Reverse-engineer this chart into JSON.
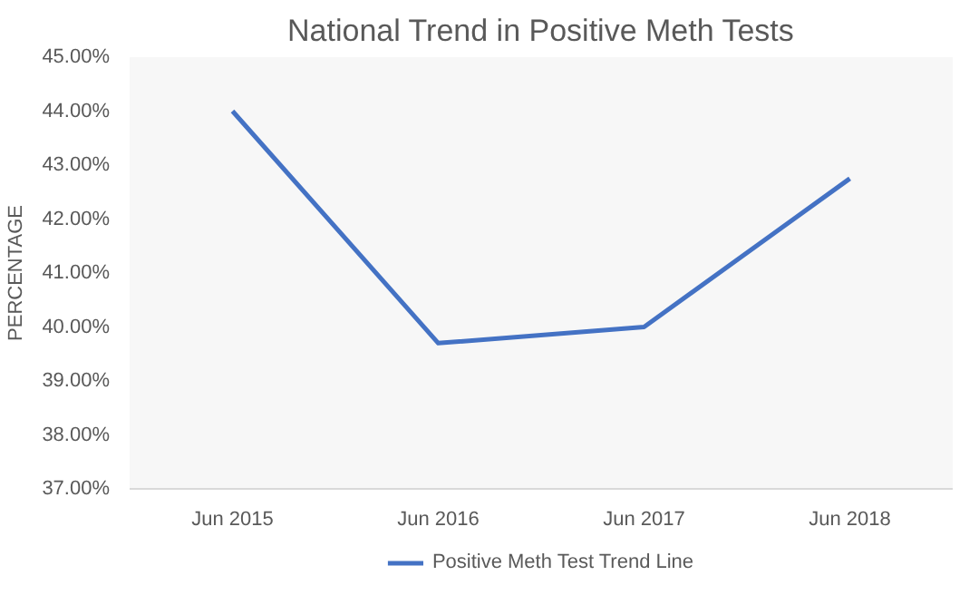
{
  "chart_data": {
    "type": "line",
    "title": "National Trend in Positive Meth Tests",
    "ylabel": "PERCENTAGE",
    "categories": [
      "Jun 2015",
      "Jun 2016",
      "Jun 2017",
      "Jun 2018"
    ],
    "series": [
      {
        "name": "Positive Meth Test Trend Line",
        "color": "#4472c4",
        "values": [
          44.0,
          39.7,
          40.0,
          42.75
        ]
      }
    ],
    "ylim": [
      37,
      45
    ],
    "yticks": [
      {
        "value": 37,
        "label": "37.00%"
      },
      {
        "value": 38,
        "label": "38.00%"
      },
      {
        "value": 39,
        "label": "39.00%"
      },
      {
        "value": 40,
        "label": "40.00%"
      },
      {
        "value": 41,
        "label": "41.00%"
      },
      {
        "value": 42,
        "label": "42.00%"
      },
      {
        "value": 43,
        "label": "43.00%"
      },
      {
        "value": 44,
        "label": "44.00%"
      },
      {
        "value": 45,
        "label": "45.00%"
      }
    ],
    "grid": false,
    "legend": "bottom",
    "marker": "none",
    "line_style": "solid"
  }
}
